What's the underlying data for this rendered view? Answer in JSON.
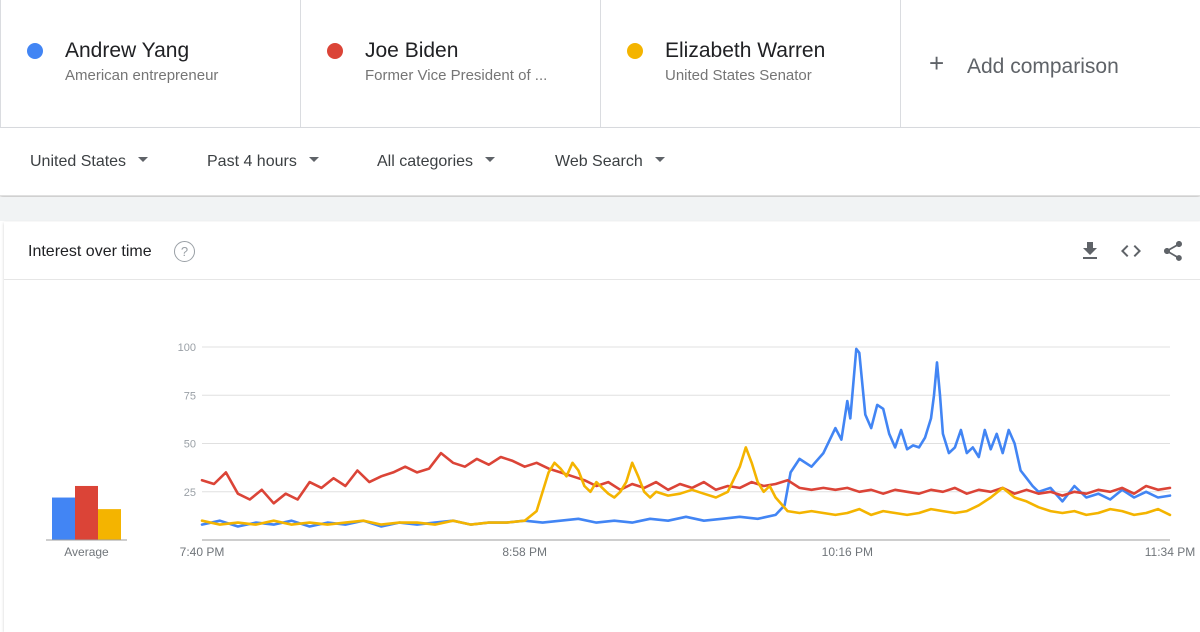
{
  "terms": [
    {
      "name": "Andrew Yang",
      "subtitle": "American entrepreneur",
      "color": "#4285f4"
    },
    {
      "name": "Joe Biden",
      "subtitle": "Former Vice President of ...",
      "color": "#db4437"
    },
    {
      "name": "Elizabeth Warren",
      "subtitle": "United States Senator",
      "color": "#f4b400"
    }
  ],
  "add_comparison": {
    "icon": "+",
    "label": "Add comparison"
  },
  "filters": [
    {
      "label": "United States"
    },
    {
      "label": "Past 4 hours"
    },
    {
      "label": "All categories"
    },
    {
      "label": "Web Search"
    }
  ],
  "card": {
    "title": "Interest over time",
    "help_icon": "?",
    "icons": [
      "download-icon",
      "embed-icon",
      "share-icon"
    ]
  },
  "chart_data": {
    "type": "line",
    "title": "",
    "xlabel": "",
    "ylabel": "",
    "ylim": [
      0,
      100
    ],
    "yticks": [
      25,
      50,
      75,
      100
    ],
    "x_tick_labels": [
      "7:40 PM",
      "8:58 PM",
      "10:16 PM",
      "11:34 PM"
    ],
    "grid": true,
    "average": {
      "label": "Average",
      "values": [
        22,
        28,
        16
      ]
    },
    "series": [
      {
        "name": "Andrew Yang",
        "color": "#4285f4",
        "points": [
          [
            0,
            8
          ],
          [
            6,
            10
          ],
          [
            12,
            7
          ],
          [
            18,
            9
          ],
          [
            24,
            8
          ],
          [
            30,
            10
          ],
          [
            36,
            7
          ],
          [
            42,
            9
          ],
          [
            48,
            8
          ],
          [
            54,
            10
          ],
          [
            60,
            7
          ],
          [
            66,
            9
          ],
          [
            72,
            8
          ],
          [
            78,
            9
          ],
          [
            84,
            10
          ],
          [
            90,
            8
          ],
          [
            96,
            9
          ],
          [
            102,
            9
          ],
          [
            108,
            10
          ],
          [
            114,
            9
          ],
          [
            120,
            10
          ],
          [
            126,
            11
          ],
          [
            132,
            9
          ],
          [
            138,
            10
          ],
          [
            144,
            9
          ],
          [
            150,
            11
          ],
          [
            156,
            10
          ],
          [
            162,
            12
          ],
          [
            168,
            10
          ],
          [
            174,
            11
          ],
          [
            180,
            12
          ],
          [
            186,
            11
          ],
          [
            192,
            13
          ],
          [
            195,
            18
          ],
          [
            197,
            35
          ],
          [
            200,
            42
          ],
          [
            204,
            38
          ],
          [
            208,
            45
          ],
          [
            212,
            58
          ],
          [
            214,
            52
          ],
          [
            216,
            72
          ],
          [
            217,
            63
          ],
          [
            219,
            99
          ],
          [
            220,
            97
          ],
          [
            222,
            65
          ],
          [
            224,
            58
          ],
          [
            226,
            70
          ],
          [
            228,
            68
          ],
          [
            230,
            55
          ],
          [
            232,
            48
          ],
          [
            234,
            57
          ],
          [
            236,
            47
          ],
          [
            238,
            49
          ],
          [
            240,
            48
          ],
          [
            242,
            53
          ],
          [
            244,
            63
          ],
          [
            245,
            75
          ],
          [
            246,
            92
          ],
          [
            247,
            75
          ],
          [
            248,
            55
          ],
          [
            250,
            45
          ],
          [
            252,
            48
          ],
          [
            254,
            57
          ],
          [
            256,
            45
          ],
          [
            258,
            48
          ],
          [
            260,
            43
          ],
          [
            262,
            57
          ],
          [
            264,
            47
          ],
          [
            266,
            55
          ],
          [
            268,
            45
          ],
          [
            270,
            57
          ],
          [
            272,
            50
          ],
          [
            274,
            36
          ],
          [
            276,
            32
          ],
          [
            278,
            28
          ],
          [
            280,
            25
          ],
          [
            284,
            27
          ],
          [
            288,
            20
          ],
          [
            292,
            28
          ],
          [
            296,
            22
          ],
          [
            300,
            24
          ],
          [
            304,
            21
          ],
          [
            308,
            26
          ],
          [
            312,
            22
          ],
          [
            316,
            25
          ],
          [
            320,
            22
          ],
          [
            324,
            23
          ]
        ]
      },
      {
        "name": "Joe Biden",
        "color": "#db4437",
        "points": [
          [
            0,
            31
          ],
          [
            4,
            29
          ],
          [
            8,
            35
          ],
          [
            12,
            24
          ],
          [
            16,
            21
          ],
          [
            20,
            26
          ],
          [
            24,
            19
          ],
          [
            28,
            24
          ],
          [
            32,
            21
          ],
          [
            36,
            30
          ],
          [
            40,
            27
          ],
          [
            44,
            32
          ],
          [
            48,
            28
          ],
          [
            52,
            36
          ],
          [
            56,
            30
          ],
          [
            60,
            33
          ],
          [
            64,
            35
          ],
          [
            68,
            38
          ],
          [
            72,
            35
          ],
          [
            76,
            37
          ],
          [
            80,
            45
          ],
          [
            84,
            40
          ],
          [
            88,
            38
          ],
          [
            92,
            42
          ],
          [
            96,
            39
          ],
          [
            100,
            43
          ],
          [
            104,
            41
          ],
          [
            108,
            38
          ],
          [
            112,
            40
          ],
          [
            116,
            37
          ],
          [
            120,
            35
          ],
          [
            124,
            33
          ],
          [
            128,
            31
          ],
          [
            132,
            28
          ],
          [
            136,
            30
          ],
          [
            140,
            26
          ],
          [
            144,
            29
          ],
          [
            148,
            27
          ],
          [
            152,
            30
          ],
          [
            156,
            26
          ],
          [
            160,
            29
          ],
          [
            164,
            27
          ],
          [
            168,
            30
          ],
          [
            172,
            26
          ],
          [
            176,
            28
          ],
          [
            180,
            27
          ],
          [
            184,
            30
          ],
          [
            188,
            28
          ],
          [
            192,
            29
          ],
          [
            196,
            31
          ],
          [
            200,
            27
          ],
          [
            204,
            26
          ],
          [
            208,
            27
          ],
          [
            212,
            26
          ],
          [
            216,
            27
          ],
          [
            220,
            25
          ],
          [
            224,
            26
          ],
          [
            228,
            24
          ],
          [
            232,
            26
          ],
          [
            236,
            25
          ],
          [
            240,
            24
          ],
          [
            244,
            26
          ],
          [
            248,
            25
          ],
          [
            252,
            27
          ],
          [
            256,
            24
          ],
          [
            260,
            26
          ],
          [
            264,
            25
          ],
          [
            268,
            27
          ],
          [
            272,
            24
          ],
          [
            276,
            26
          ],
          [
            280,
            24
          ],
          [
            284,
            25
          ],
          [
            288,
            23
          ],
          [
            292,
            25
          ],
          [
            296,
            24
          ],
          [
            300,
            26
          ],
          [
            304,
            25
          ],
          [
            308,
            27
          ],
          [
            312,
            24
          ],
          [
            316,
            28
          ],
          [
            320,
            26
          ],
          [
            324,
            27
          ]
        ]
      },
      {
        "name": "Elizabeth Warren",
        "color": "#f4b400",
        "points": [
          [
            0,
            10
          ],
          [
            6,
            8
          ],
          [
            12,
            9
          ],
          [
            18,
            8
          ],
          [
            24,
            10
          ],
          [
            30,
            8
          ],
          [
            36,
            9
          ],
          [
            42,
            8
          ],
          [
            48,
            9
          ],
          [
            54,
            10
          ],
          [
            60,
            8
          ],
          [
            66,
            9
          ],
          [
            72,
            9
          ],
          [
            78,
            8
          ],
          [
            84,
            10
          ],
          [
            90,
            8
          ],
          [
            96,
            9
          ],
          [
            102,
            9
          ],
          [
            108,
            10
          ],
          [
            112,
            15
          ],
          [
            114,
            25
          ],
          [
            116,
            35
          ],
          [
            118,
            40
          ],
          [
            120,
            37
          ],
          [
            122,
            33
          ],
          [
            124,
            40
          ],
          [
            126,
            36
          ],
          [
            128,
            28
          ],
          [
            130,
            25
          ],
          [
            132,
            30
          ],
          [
            134,
            27
          ],
          [
            136,
            24
          ],
          [
            138,
            22
          ],
          [
            140,
            25
          ],
          [
            142,
            30
          ],
          [
            144,
            40
          ],
          [
            146,
            33
          ],
          [
            148,
            25
          ],
          [
            150,
            22
          ],
          [
            152,
            25
          ],
          [
            156,
            23
          ],
          [
            160,
            24
          ],
          [
            164,
            26
          ],
          [
            168,
            24
          ],
          [
            172,
            22
          ],
          [
            176,
            25
          ],
          [
            180,
            38
          ],
          [
            182,
            48
          ],
          [
            184,
            40
          ],
          [
            186,
            30
          ],
          [
            188,
            25
          ],
          [
            190,
            28
          ],
          [
            192,
            22
          ],
          [
            196,
            15
          ],
          [
            200,
            14
          ],
          [
            204,
            15
          ],
          [
            208,
            14
          ],
          [
            212,
            13
          ],
          [
            216,
            14
          ],
          [
            220,
            16
          ],
          [
            224,
            13
          ],
          [
            228,
            15
          ],
          [
            232,
            14
          ],
          [
            236,
            13
          ],
          [
            240,
            14
          ],
          [
            244,
            16
          ],
          [
            248,
            15
          ],
          [
            252,
            14
          ],
          [
            256,
            15
          ],
          [
            260,
            18
          ],
          [
            264,
            22
          ],
          [
            268,
            27
          ],
          [
            272,
            22
          ],
          [
            276,
            20
          ],
          [
            280,
            17
          ],
          [
            284,
            15
          ],
          [
            288,
            14
          ],
          [
            292,
            15
          ],
          [
            296,
            13
          ],
          [
            300,
            14
          ],
          [
            304,
            16
          ],
          [
            308,
            15
          ],
          [
            312,
            13
          ],
          [
            316,
            14
          ],
          [
            320,
            16
          ],
          [
            324,
            13
          ]
        ]
      }
    ]
  }
}
